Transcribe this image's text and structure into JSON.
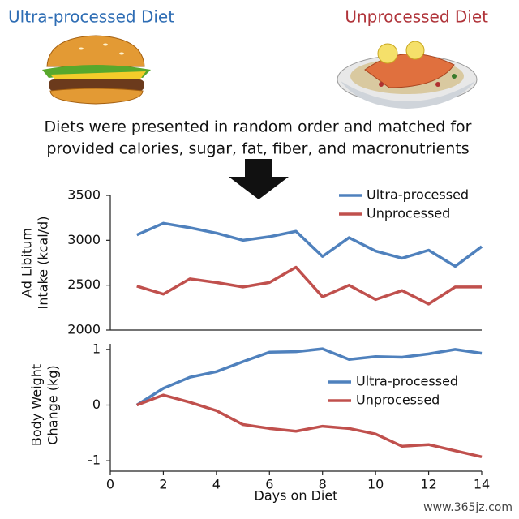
{
  "header": {
    "left_title": "Ultra-processed Diet",
    "right_title": "Unprocessed Diet",
    "description": [
      "Diets were presented in random order and matched for",
      "provided calories, sugar, fat, fiber, and macronutrients"
    ],
    "watermark": "www.365jz.com"
  },
  "chart_data": [
    {
      "type": "line",
      "ylabel": [
        "Ad Libitum",
        "Intake (kcal/d)"
      ],
      "x": [
        1,
        2,
        3,
        4,
        5,
        6,
        7,
        8,
        9,
        10,
        11,
        12,
        13,
        14
      ],
      "xlim": [
        0,
        14
      ],
      "ylim": [
        2000,
        3500
      ],
      "yticks": [
        2000,
        2500,
        3000,
        3500
      ],
      "legend": "upper right",
      "grid": false,
      "series": [
        {
          "name": "Ultra-processed",
          "color": "#4f81bd",
          "values": [
            3060,
            3190,
            3140,
            3080,
            3000,
            3040,
            3100,
            2820,
            3030,
            2880,
            2800,
            2890,
            2710,
            2930
          ]
        },
        {
          "name": "Unprocessed",
          "color": "#c0504d",
          "values": [
            2490,
            2400,
            2570,
            2530,
            2480,
            2530,
            2700,
            2370,
            2500,
            2340,
            2440,
            2290,
            2480,
            2480
          ]
        }
      ]
    },
    {
      "type": "line",
      "ylabel": [
        "Body Weight",
        "Change (kg)"
      ],
      "xlabel": "Days on Diet",
      "x": [
        1,
        2,
        3,
        4,
        5,
        6,
        7,
        8,
        9,
        10,
        11,
        12,
        13,
        14
      ],
      "xlim": [
        0,
        14
      ],
      "xticks": [
        0,
        2,
        4,
        6,
        8,
        10,
        12,
        14
      ],
      "ylim": [
        -1.1,
        1.1
      ],
      "yticks": [
        -1,
        0,
        1
      ],
      "legend": "center right",
      "grid": false,
      "series": [
        {
          "name": "Ultra-processed",
          "color": "#4f81bd",
          "values": [
            0,
            0.3,
            0.5,
            0.6,
            0.78,
            0.95,
            0.96,
            1.01,
            0.82,
            0.87,
            0.86,
            0.92,
            1.0,
            0.93
          ]
        },
        {
          "name": "Unprocessed",
          "color": "#c0504d",
          "values": [
            0,
            0.18,
            0.05,
            -0.1,
            -0.35,
            -0.42,
            -0.47,
            -0.38,
            -0.42,
            -0.52,
            -0.74,
            -0.71,
            -0.82,
            -0.93
          ]
        }
      ]
    }
  ]
}
